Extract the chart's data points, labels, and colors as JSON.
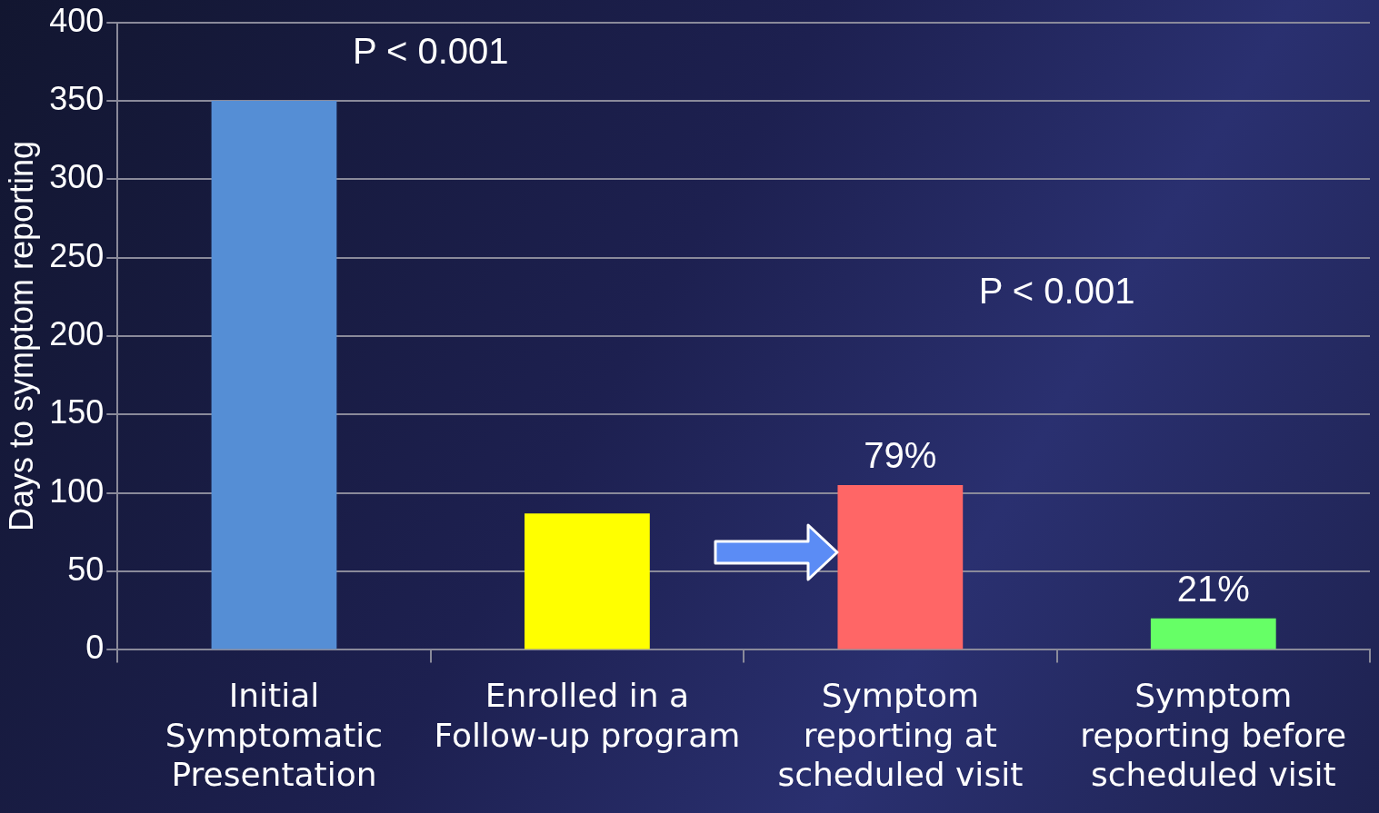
{
  "chart_data": {
    "type": "bar",
    "ylabel": "Days to symptom reporting",
    "categories": [
      "Initial Symptomatic Presentation",
      "Enrolled in a Follow-up program",
      "Symptom reporting at scheduled visit",
      "Symptom reporting before scheduled visit"
    ],
    "values": [
      350,
      87,
      105,
      20
    ],
    "colors": [
      "#558ed5",
      "#ffff00",
      "#ff6666",
      "#66ff66"
    ],
    "annotations": [
      "P < 0.001",
      "P < 0.001",
      {
        "text": "79%",
        "x": "Symptom reporting at scheduled visit",
        "y": 105
      },
      {
        "text": "21%",
        "x": "Symptom reporting before scheduled visit",
        "y": 20
      }
    ],
    "ylim": [
      0,
      400
    ],
    "yticks": [
      0,
      50,
      100,
      150,
      200,
      250,
      300,
      350,
      400
    ],
    "grid": "y",
    "legend": false
  }
}
